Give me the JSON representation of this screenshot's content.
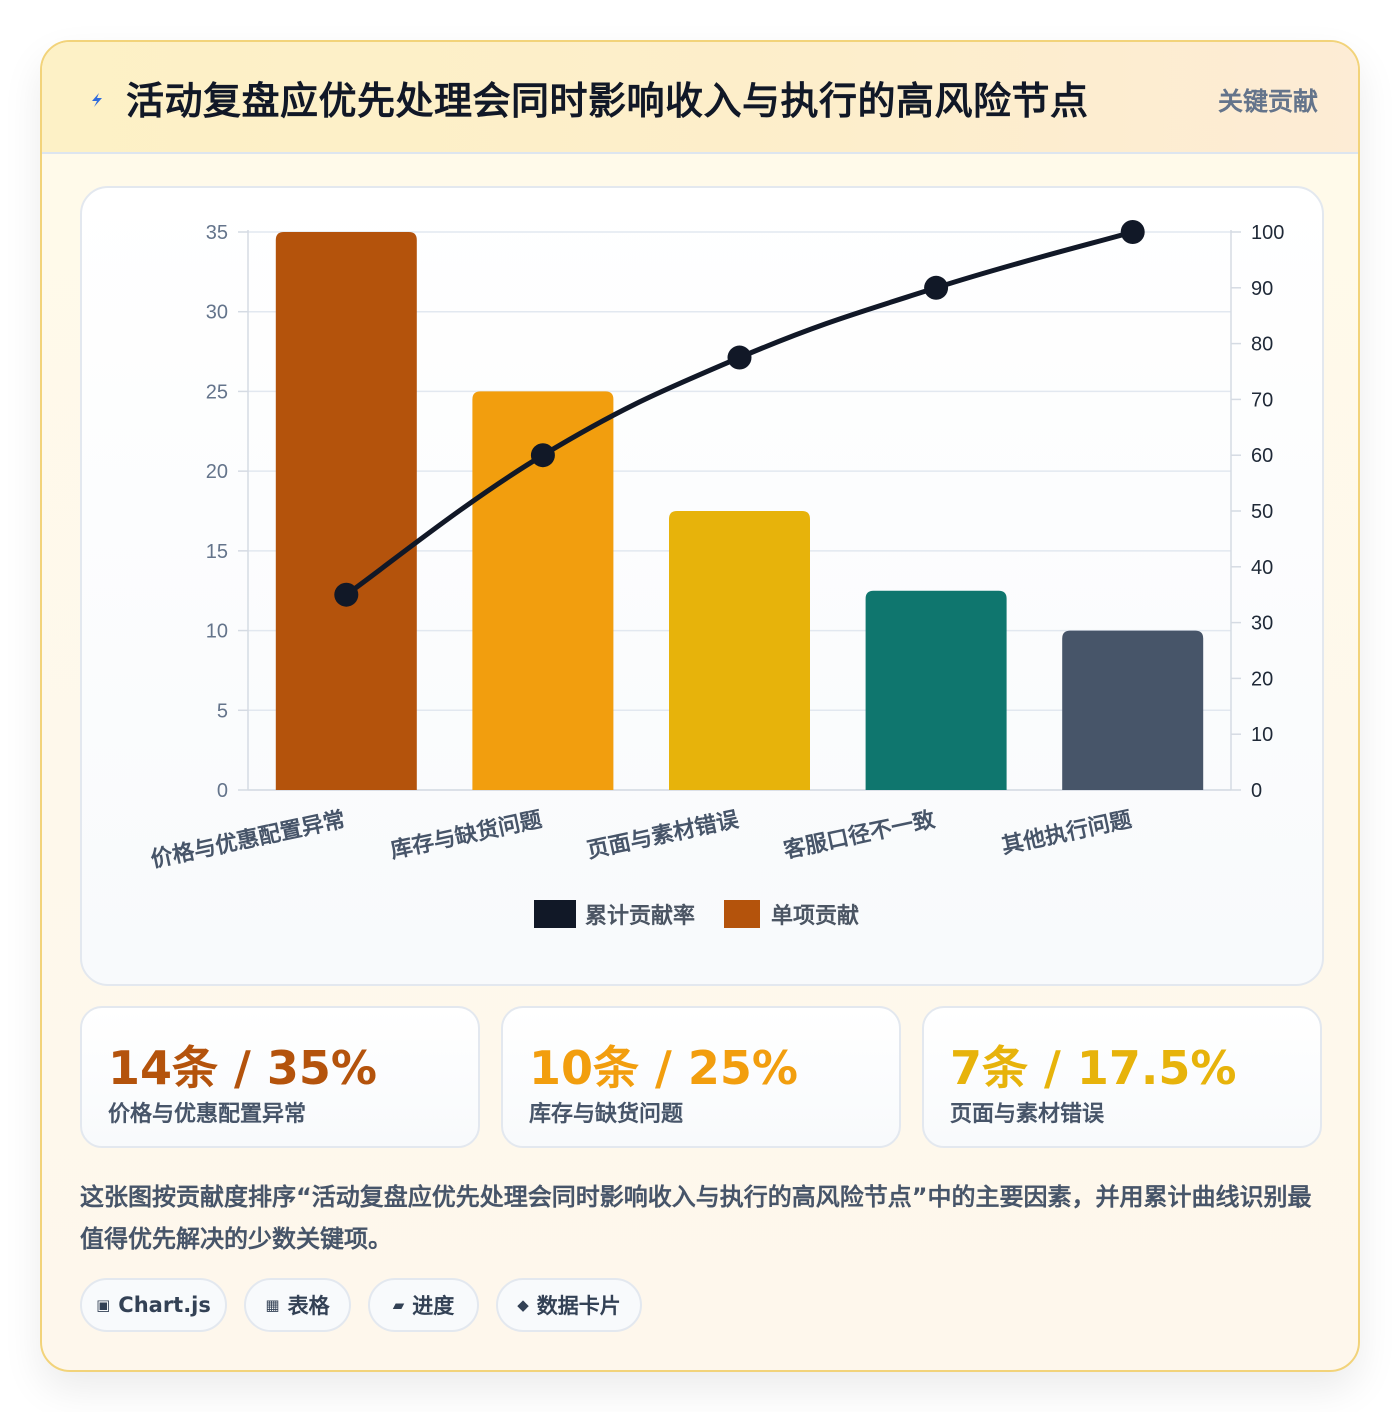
{
  "header": {
    "title": "活动复盘应优先处理会同时影响收入与执行的高风险节点",
    "badge": "关键贡献"
  },
  "chart_data": {
    "type": "bar",
    "categories": [
      "价格与优惠配置异常",
      "库存与缺货问题",
      "页面与素材错误",
      "客服口径不一致",
      "其他执行问题"
    ],
    "series": [
      {
        "name": "单项贡献",
        "type": "bar",
        "axis": "left",
        "values": [
          35,
          25,
          17.5,
          12.5,
          10
        ]
      },
      {
        "name": "累计贡献率",
        "type": "line",
        "axis": "right",
        "values": [
          35,
          60,
          77.5,
          90,
          100
        ]
      }
    ],
    "bar_colors": [
      "#b4530c",
      "#f29e0e",
      "#e7b30b",
      "#0f766e",
      "#475569"
    ],
    "line_color": "#111827",
    "legend_color_bar": "#b4530c",
    "ylim_left": [
      0,
      35
    ],
    "yticks_left": [
      0,
      5,
      10,
      15,
      20,
      25,
      30,
      35
    ],
    "ylim_right": [
      0,
      100
    ],
    "yticks_right": [
      0,
      10,
      20,
      30,
      40,
      50,
      60,
      70,
      80,
      90,
      100
    ],
    "legend": [
      "累计贡献率",
      "单项贡献"
    ],
    "legend_position": "bottom",
    "grid": true
  },
  "stats": [
    {
      "value": "14条 / 35%",
      "label": "价格与优惠配置异常",
      "color": "#b4530c"
    },
    {
      "value": "10条 / 25%",
      "label": "库存与缺货问题",
      "color": "#f29e0e"
    },
    {
      "value": "7条 / 17.5%",
      "label": "页面与素材错误",
      "color": "#e7b30b"
    }
  ],
  "description": "这张图按贡献度排序“活动复盘应优先处理会同时影响收入与执行的高风险节点”中的主要因素，并用累计曲线识别最值得优先解决的少数关键项。",
  "tags": [
    {
      "icon": "chart-icon",
      "glyph": "▣",
      "label": "Chart.js"
    },
    {
      "icon": "table-icon",
      "glyph": "▦",
      "label": "表格"
    },
    {
      "icon": "progress-icon",
      "glyph": "▰",
      "label": "进度"
    },
    {
      "icon": "diamond-icon",
      "glyph": "◆",
      "label": "数据卡片"
    }
  ]
}
